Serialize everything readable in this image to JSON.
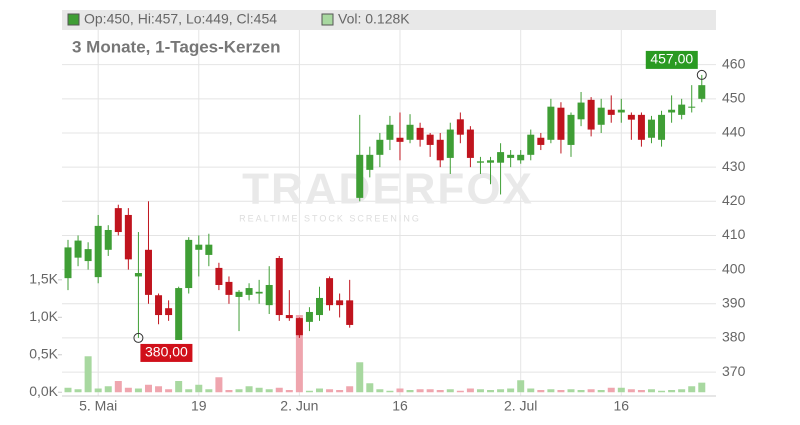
{
  "chart_data": {
    "type": "candlestick",
    "subtitle": "3 Monate, 1-Tages-Kerzen",
    "legend": {
      "price": "Op:450, Hi:457, Lo:449, Cl:454",
      "volume": "Vol: 0.128K"
    },
    "watermark": {
      "brand": "TRADERFOX",
      "tagline": "REALTIME STOCK SCREENING"
    },
    "high_label": "457,00",
    "low_label": "380,00",
    "categories": [
      null,
      null,
      null,
      "5. Mai",
      null,
      null,
      null,
      null,
      null,
      null,
      null,
      null,
      null,
      "19",
      null,
      null,
      null,
      null,
      null,
      null,
      null,
      null,
      null,
      "2. Jun",
      null,
      null,
      null,
      null,
      null,
      null,
      null,
      null,
      null,
      "16",
      null,
      null,
      null,
      null,
      null,
      null,
      null,
      null,
      null,
      null,
      null,
      "2. Jul",
      null,
      null,
      null,
      null,
      null,
      null,
      null,
      null,
      null,
      "16",
      null,
      null,
      null,
      null,
      null,
      null,
      null,
      null
    ],
    "open": [
      397.5,
      403.5,
      402.5,
      397.8,
      405.8,
      418,
      416,
      398,
      405.8,
      392.5,
      388.7,
      379.4,
      394.6,
      405.8,
      404.3,
      400.5,
      396.4,
      392,
      392.6,
      393,
      389.6,
      403.4,
      386.7,
      385.8,
      384.7,
      386.7,
      397.5,
      391,
      391,
      421,
      429.2,
      433.6,
      438,
      438.6,
      438,
      441.5,
      439.5,
      438,
      432.7,
      444,
      441,
      431.3,
      431.3,
      431.3,
      432.7,
      432,
      433.6,
      438.6,
      438,
      447.4,
      436.5,
      444,
      449.7,
      442.4,
      446.8,
      446,
      445.3,
      445.3,
      438.6,
      438,
      446,
      445.3,
      447.4,
      450
    ],
    "high": [
      408.7,
      410,
      408,
      416,
      413,
      419,
      418,
      411,
      420,
      393,
      391,
      395,
      409.5,
      410,
      410.5,
      402,
      398,
      394,
      396,
      397,
      401,
      404,
      394,
      386,
      389,
      395,
      398,
      393,
      397,
      445.3,
      436,
      440,
      445,
      446,
      445.5,
      443,
      440,
      440,
      443,
      446,
      442,
      433,
      433,
      437,
      435,
      435,
      441,
      440,
      450,
      449,
      446,
      452,
      450.5,
      450,
      451,
      450,
      446,
      446,
      445,
      446.5,
      451,
      450,
      454,
      457
    ],
    "low": [
      394,
      401,
      400,
      396,
      404,
      410,
      400,
      380,
      390,
      384,
      385,
      380,
      393,
      398,
      401,
      394,
      390,
      382,
      391,
      390,
      387,
      385,
      385,
      380,
      382,
      385,
      388,
      386,
      383,
      420,
      427,
      430,
      435,
      432,
      437,
      436,
      433,
      430,
      428,
      437,
      430,
      428,
      425,
      422,
      430,
      431,
      432,
      435,
      437,
      434,
      433,
      442,
      439,
      440,
      443,
      443,
      438,
      436,
      437,
      436,
      443,
      444,
      446,
      449
    ],
    "close": [
      406.5,
      408.5,
      406,
      412.8,
      411.6,
      411,
      403,
      399,
      392.6,
      386.7,
      386.7,
      394.6,
      408.7,
      407.3,
      407.3,
      395.5,
      392.6,
      393.5,
      394.6,
      393.5,
      395.5,
      386.7,
      385.8,
      380.8,
      387.6,
      391.7,
      389.6,
      389.6,
      383.8,
      433.6,
      433.6,
      438,
      442.4,
      437.4,
      442.4,
      438,
      436.5,
      432,
      441,
      439.5,
      432.7,
      431.7,
      432,
      434.4,
      433.6,
      433.6,
      439.5,
      436.5,
      447.7,
      438,
      445.3,
      448.9,
      441,
      447.4,
      445.3,
      446.8,
      443.9,
      438,
      443.9,
      445.3,
      446.8,
      448.3,
      447.7,
      454
    ],
    "up_color": "#3f9e35",
    "down_color": "#c0141e",
    "volume": {
      "axis": "y2",
      "up_color": "#a8d8a0",
      "down_color": "#efa5ae",
      "values": [
        0.06,
        0.04,
        0.48,
        0.05,
        0.08,
        0.15,
        0.06,
        0.05,
        0.1,
        0.08,
        0.04,
        0.15,
        0.04,
        0.1,
        0.04,
        0.2,
        0.03,
        0.04,
        0.08,
        0.06,
        0.04,
        0.06,
        0.03,
        1.03,
        0.02,
        0.05,
        0.04,
        0.03,
        0.08,
        0.4,
        0.12,
        0.04,
        0.02,
        0.05,
        0.03,
        0.04,
        0.04,
        0.03,
        0.04,
        0.02,
        0.05,
        0.04,
        0.03,
        0.04,
        0.05,
        0.16,
        0.05,
        0.03,
        0.04,
        0.03,
        0.04,
        0.03,
        0.04,
        0.03,
        0.06,
        0.06,
        0.04,
        0.03,
        0.04,
        0.02,
        0.03,
        0.04,
        0.08,
        0.128
      ]
    },
    "ylim": [
      363,
      476
    ],
    "yticks": [
      370,
      380,
      390,
      400,
      410,
      420,
      430,
      440,
      450,
      460
    ],
    "y2lim": [
      -0.05,
      5.1
    ],
    "y2ticks": [
      {
        "value": 0,
        "label": "0,0K"
      },
      {
        "value": 0.5,
        "label": "0,5K"
      },
      {
        "value": 1,
        "label": "1,0K"
      },
      {
        "value": 1.5,
        "label": "1,5K"
      }
    ],
    "grid": true
  }
}
